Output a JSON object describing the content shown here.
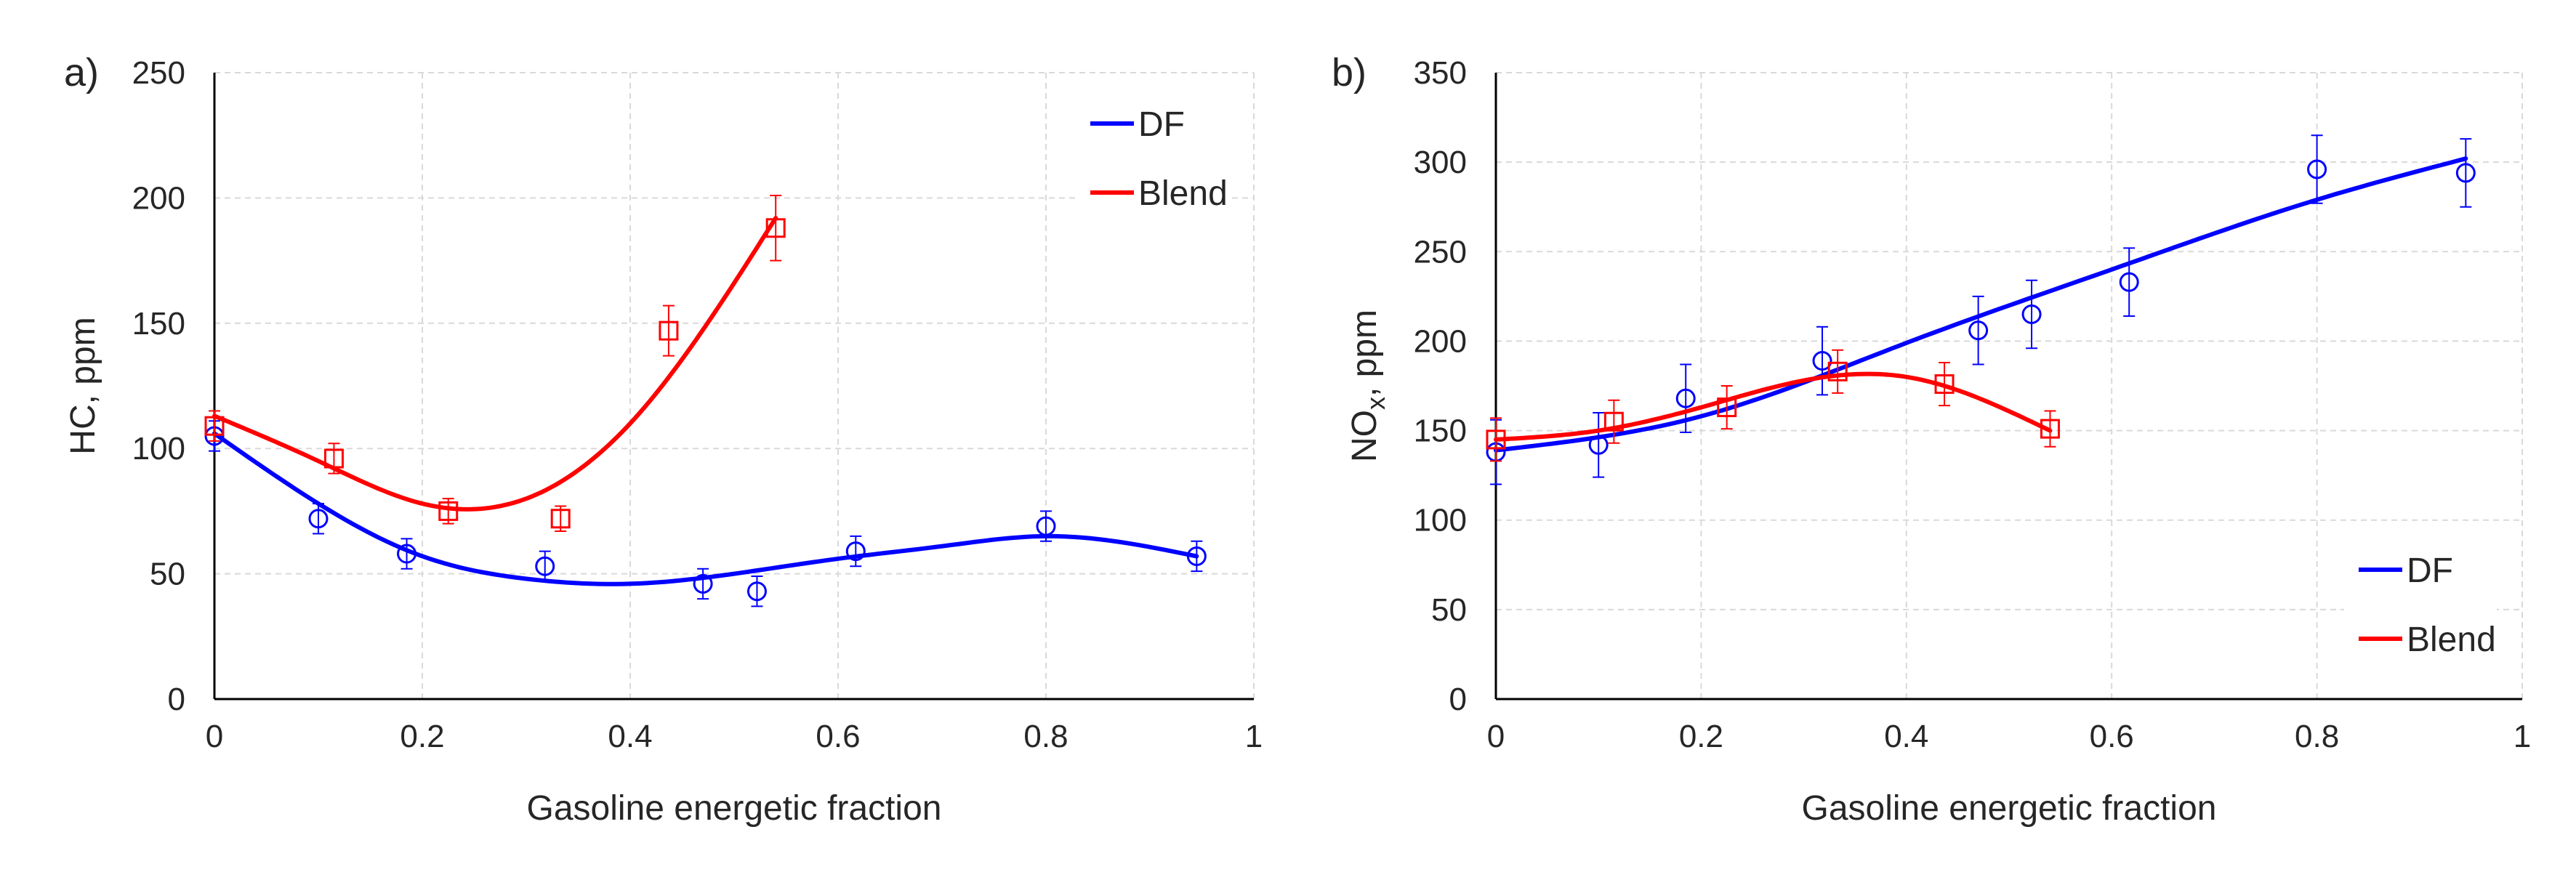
{
  "chart_data": [
    {
      "type": "scatter",
      "panel_label": "a)",
      "title": "",
      "xlabel": "Gasoline energetic fraction",
      "ylabel": "HC, ppm",
      "ylabel_subscript": "",
      "ylabel_suffix": "",
      "xlim": [
        0,
        1
      ],
      "ylim": [
        0,
        250
      ],
      "x_ticks": [
        0,
        0.2,
        0.4,
        0.6,
        0.8,
        1
      ],
      "x_tick_labels": [
        "0",
        "0.2",
        "0.4",
        "0.6",
        "0.8",
        "1"
      ],
      "y_ticks": [
        0,
        50,
        100,
        150,
        200,
        250
      ],
      "y_tick_labels": [
        "0",
        "50",
        "100",
        "150",
        "200",
        "250"
      ],
      "grid": true,
      "legend_position": "top-right",
      "series": [
        {
          "name": "DF",
          "color": "#0000ff",
          "marker": "circle",
          "x": [
            0,
            0.1,
            0.185,
            0.318,
            0.47,
            0.522,
            0.617,
            0.8,
            0.945
          ],
          "y": [
            105,
            72,
            58,
            53,
            46,
            43,
            59,
            69,
            57
          ],
          "err": [
            6,
            6,
            6,
            6,
            6,
            6,
            6,
            6,
            6
          ],
          "trend": {
            "x_range": [
              0,
              0.945
            ],
            "points": [
              [
                0,
                106
              ],
              [
                0.1,
                78
              ],
              [
                0.2,
                57
              ],
              [
                0.3,
                48
              ],
              [
                0.4,
                46
              ],
              [
                0.5,
                50
              ],
              [
                0.6,
                56
              ],
              [
                0.7,
                61
              ],
              [
                0.8,
                65
              ],
              [
                0.945,
                57
              ]
            ]
          }
        },
        {
          "name": "Blend",
          "color": "#ff0000",
          "marker": "square",
          "x": [
            0,
            0.115,
            0.225,
            0.333,
            0.437,
            0.54
          ],
          "y": [
            109,
            96,
            75,
            72,
            147,
            188
          ],
          "err": [
            6,
            6,
            5,
            5,
            10,
            13
          ],
          "trend": {
            "x_range": [
              0,
              0.54
            ],
            "points": [
              [
                0,
                113
              ],
              [
                0.1,
                95
              ],
              [
                0.2,
                78
              ],
              [
                0.3,
                80
              ],
              [
                0.4,
                110
              ],
              [
                0.54,
                192
              ]
            ]
          }
        }
      ]
    },
    {
      "type": "scatter",
      "panel_label": "b)",
      "title": "",
      "xlabel": "Gasoline energetic fraction",
      "ylabel": "NO",
      "ylabel_subscript": "x",
      "ylabel_suffix": ", ppm",
      "xlim": [
        0,
        1
      ],
      "ylim": [
        0,
        350
      ],
      "x_ticks": [
        0,
        0.2,
        0.4,
        0.6,
        0.8,
        1
      ],
      "x_tick_labels": [
        "0",
        "0.2",
        "0.4",
        "0.6",
        "0.8",
        "1"
      ],
      "y_ticks": [
        0,
        50,
        100,
        150,
        200,
        250,
        300,
        350
      ],
      "y_tick_labels": [
        "0",
        "50",
        "100",
        "150",
        "200",
        "250",
        "300",
        "350"
      ],
      "grid": true,
      "legend_position": "bottom-right",
      "series": [
        {
          "name": "DF",
          "color": "#0000ff",
          "marker": "circle",
          "x": [
            0,
            0.1,
            0.185,
            0.318,
            0.47,
            0.522,
            0.617,
            0.8,
            0.945
          ],
          "y": [
            138,
            142,
            168,
            189,
            206,
            215,
            233,
            296,
            294
          ],
          "err": [
            18,
            18,
            19,
            19,
            19,
            19,
            19,
            19,
            19
          ],
          "trend": {
            "x_range": [
              0,
              0.945
            ],
            "points": [
              [
                0,
                139
              ],
              [
                0.2,
                158
              ],
              [
                0.4,
                199
              ],
              [
                0.6,
                240
              ],
              [
                0.8,
                279
              ],
              [
                0.945,
                302
              ]
            ]
          }
        },
        {
          "name": "Blend",
          "color": "#ff0000",
          "marker": "square",
          "x": [
            0,
            0.115,
            0.225,
            0.333,
            0.437,
            0.54
          ],
          "y": [
            145,
            155,
            163,
            183,
            176,
            151
          ],
          "err": [
            12,
            12,
            12,
            12,
            12,
            10
          ],
          "trend": {
            "x_range": [
              0,
              0.54
            ],
            "points": [
              [
                0,
                145
              ],
              [
                0.1,
                150
              ],
              [
                0.2,
                163
              ],
              [
                0.3,
                178
              ],
              [
                0.4,
                180
              ],
              [
                0.54,
                150
              ]
            ]
          }
        }
      ]
    }
  ]
}
